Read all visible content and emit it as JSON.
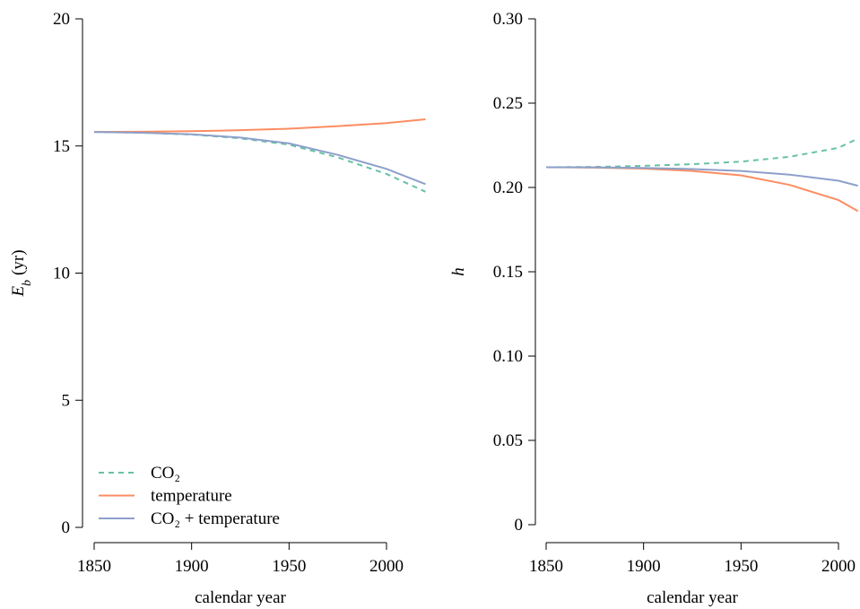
{
  "chart_data": [
    {
      "type": "line",
      "x_label": "calendar year",
      "y_label": [
        "E",
        "b",
        "(yr)"
      ],
      "x": [
        1850,
        1875,
        1900,
        1925,
        1950,
        1975,
        2000,
        2020
      ],
      "xlim": [
        1850,
        2000
      ],
      "xticks": [
        1850,
        1900,
        1950,
        2000
      ],
      "ylim": [
        0,
        20
      ],
      "yticks": [
        0,
        5,
        10,
        15,
        20
      ],
      "legend": "bottom-left",
      "series": [
        {
          "name": "CO₂",
          "color": "#66c2a5",
          "dash": true,
          "values": [
            15.55,
            15.52,
            15.45,
            15.3,
            15.05,
            14.55,
            13.9,
            13.2
          ]
        },
        {
          "name": "temperature",
          "color": "#fc8d62",
          "dash": false,
          "values": [
            15.55,
            15.56,
            15.58,
            15.62,
            15.68,
            15.78,
            15.9,
            16.05
          ]
        },
        {
          "name": "CO₂ + temperature",
          "color": "#8da0cb",
          "dash": false,
          "values": [
            15.55,
            15.52,
            15.46,
            15.33,
            15.1,
            14.65,
            14.1,
            13.5
          ]
        }
      ]
    },
    {
      "type": "line",
      "x_label": "calendar year",
      "y_label": [
        "h"
      ],
      "x": [
        1850,
        1875,
        1900,
        1925,
        1950,
        1975,
        2000,
        2010
      ],
      "xlim": [
        1850,
        2000
      ],
      "xticks": [
        1850,
        1900,
        1950,
        2000
      ],
      "ylim": [
        0,
        0.3
      ],
      "yticks": [
        0,
        0.05,
        {
          "value": 0.1,
          "label": "0.10"
        },
        0.15,
        {
          "value": 0.2,
          "label": "0.20"
        },
        0.25,
        {
          "value": 0.3,
          "label": "0.30"
        }
      ],
      "series": [
        {
          "name": "CO₂",
          "color": "#66c2a5",
          "dash": true,
          "values": [
            0.212,
            0.2122,
            0.2128,
            0.2138,
            0.2153,
            0.2182,
            0.2235,
            0.229
          ]
        },
        {
          "name": "temperature",
          "color": "#fc8d62",
          "dash": false,
          "values": [
            0.212,
            0.2118,
            0.2112,
            0.2098,
            0.2072,
            0.2015,
            0.1925,
            0.186
          ]
        },
        {
          "name": "CO₂ + temperature",
          "color": "#8da0cb",
          "dash": false,
          "values": [
            0.212,
            0.2119,
            0.2116,
            0.2109,
            0.2098,
            0.2076,
            0.204,
            0.201
          ]
        }
      ]
    }
  ]
}
